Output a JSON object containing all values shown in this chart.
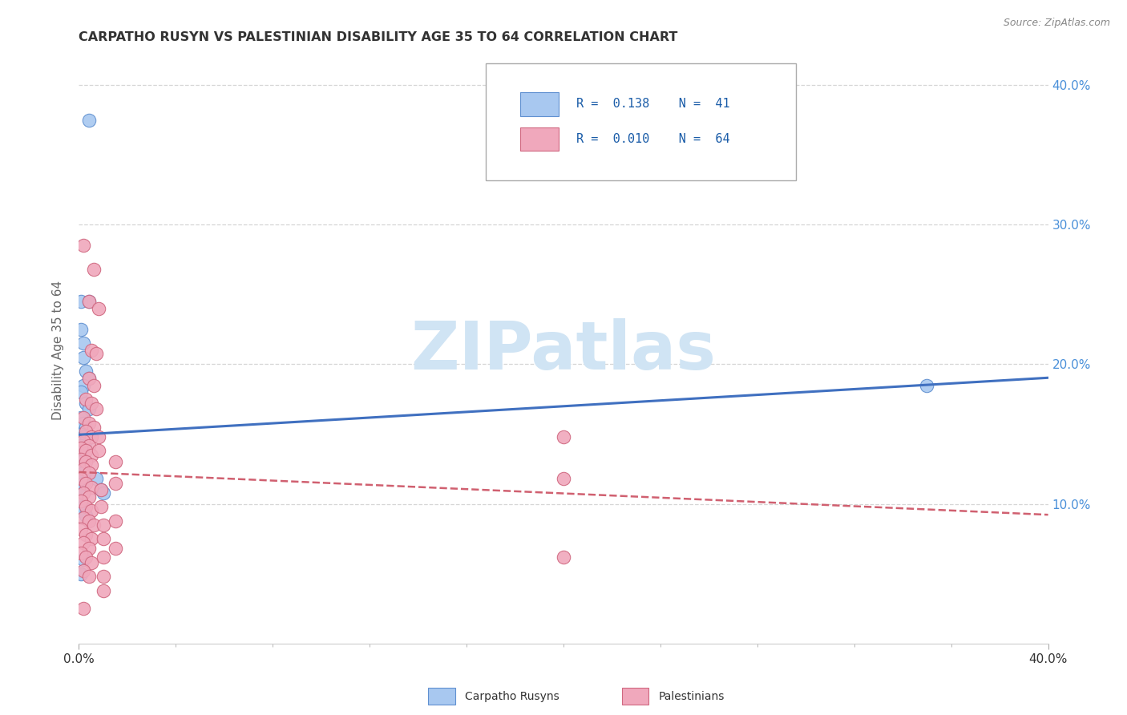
{
  "title": "CARPATHO RUSYN VS PALESTINIAN DISABILITY AGE 35 TO 64 CORRELATION CHART",
  "source": "Source: ZipAtlas.com",
  "ylabel": "Disability Age 35 to 64",
  "xmin": 0.0,
  "xmax": 0.4,
  "ymin": 0.0,
  "ymax": 0.42,
  "yticks": [
    0.1,
    0.2,
    0.3,
    0.4
  ],
  "ytick_labels": [
    "10.0%",
    "20.0%",
    "30.0%",
    "40.0%"
  ],
  "blue_R": 0.138,
  "blue_N": 41,
  "pink_R": 0.01,
  "pink_N": 64,
  "blue_fill": "#a8c8f0",
  "blue_edge": "#6090d0",
  "pink_fill": "#f0a8bc",
  "pink_edge": "#d06880",
  "blue_line": "#4070c0",
  "pink_line": "#d06070",
  "watermark_color": "#d0e4f4",
  "background_color": "#ffffff",
  "grid_color": "#cccccc",
  "title_color": "#333333",
  "source_color": "#888888",
  "axis_label_color": "#666666",
  "tick_color": "#4a90d9",
  "legend_text_color": "#1a5ca8",
  "blue_points": [
    [
      0.004,
      0.375
    ],
    [
      0.001,
      0.245
    ],
    [
      0.004,
      0.245
    ],
    [
      0.001,
      0.225
    ],
    [
      0.002,
      0.215
    ],
    [
      0.002,
      0.205
    ],
    [
      0.003,
      0.195
    ],
    [
      0.004,
      0.19
    ],
    [
      0.002,
      0.185
    ],
    [
      0.001,
      0.18
    ],
    [
      0.003,
      0.172
    ],
    [
      0.004,
      0.168
    ],
    [
      0.001,
      0.162
    ],
    [
      0.002,
      0.158
    ],
    [
      0.003,
      0.155
    ],
    [
      0.001,
      0.15
    ],
    [
      0.002,
      0.148
    ],
    [
      0.003,
      0.145
    ],
    [
      0.001,
      0.142
    ],
    [
      0.002,
      0.14
    ],
    [
      0.003,
      0.138
    ],
    [
      0.001,
      0.135
    ],
    [
      0.002,
      0.132
    ],
    [
      0.001,
      0.13
    ],
    [
      0.002,
      0.128
    ],
    [
      0.001,
      0.125
    ],
    [
      0.002,
      0.122
    ],
    [
      0.001,
      0.118
    ],
    [
      0.002,
      0.115
    ],
    [
      0.001,
      0.11
    ],
    [
      0.002,
      0.108
    ],
    [
      0.001,
      0.102
    ],
    [
      0.002,
      0.098
    ],
    [
      0.001,
      0.095
    ],
    [
      0.003,
      0.092
    ],
    [
      0.002,
      0.06
    ],
    [
      0.007,
      0.118
    ],
    [
      0.009,
      0.11
    ],
    [
      0.01,
      0.108
    ],
    [
      0.35,
      0.185
    ],
    [
      0.001,
      0.05
    ]
  ],
  "pink_points": [
    [
      0.002,
      0.285
    ],
    [
      0.006,
      0.268
    ],
    [
      0.004,
      0.245
    ],
    [
      0.008,
      0.24
    ],
    [
      0.005,
      0.21
    ],
    [
      0.007,
      0.208
    ],
    [
      0.004,
      0.19
    ],
    [
      0.006,
      0.185
    ],
    [
      0.003,
      0.175
    ],
    [
      0.005,
      0.172
    ],
    [
      0.007,
      0.168
    ],
    [
      0.002,
      0.162
    ],
    [
      0.004,
      0.158
    ],
    [
      0.006,
      0.155
    ],
    [
      0.003,
      0.152
    ],
    [
      0.005,
      0.148
    ],
    [
      0.002,
      0.145
    ],
    [
      0.004,
      0.142
    ],
    [
      0.001,
      0.14
    ],
    [
      0.003,
      0.138
    ],
    [
      0.005,
      0.135
    ],
    [
      0.001,
      0.132
    ],
    [
      0.003,
      0.13
    ],
    [
      0.005,
      0.128
    ],
    [
      0.002,
      0.125
    ],
    [
      0.004,
      0.122
    ],
    [
      0.001,
      0.118
    ],
    [
      0.003,
      0.115
    ],
    [
      0.005,
      0.112
    ],
    [
      0.002,
      0.108
    ],
    [
      0.004,
      0.105
    ],
    [
      0.001,
      0.102
    ],
    [
      0.003,
      0.098
    ],
    [
      0.005,
      0.095
    ],
    [
      0.002,
      0.09
    ],
    [
      0.004,
      0.088
    ],
    [
      0.006,
      0.085
    ],
    [
      0.001,
      0.082
    ],
    [
      0.003,
      0.078
    ],
    [
      0.005,
      0.075
    ],
    [
      0.002,
      0.072
    ],
    [
      0.004,
      0.068
    ],
    [
      0.001,
      0.065
    ],
    [
      0.003,
      0.062
    ],
    [
      0.005,
      0.058
    ],
    [
      0.002,
      0.052
    ],
    [
      0.004,
      0.048
    ],
    [
      0.008,
      0.148
    ],
    [
      0.008,
      0.138
    ],
    [
      0.009,
      0.11
    ],
    [
      0.009,
      0.098
    ],
    [
      0.01,
      0.085
    ],
    [
      0.01,
      0.075
    ],
    [
      0.01,
      0.062
    ],
    [
      0.01,
      0.048
    ],
    [
      0.01,
      0.038
    ],
    [
      0.015,
      0.13
    ],
    [
      0.015,
      0.115
    ],
    [
      0.015,
      0.088
    ],
    [
      0.015,
      0.068
    ],
    [
      0.2,
      0.148
    ],
    [
      0.2,
      0.118
    ],
    [
      0.2,
      0.062
    ],
    [
      0.002,
      0.025
    ]
  ]
}
